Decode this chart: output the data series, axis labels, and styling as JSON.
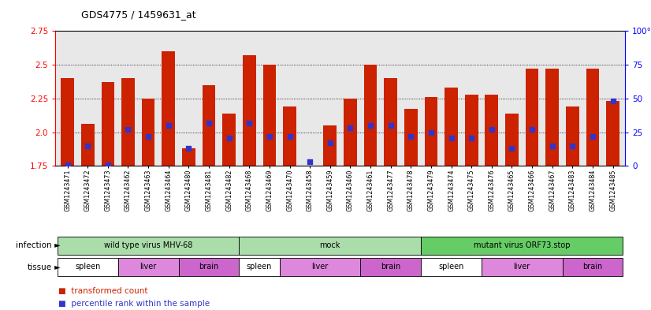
{
  "title": "GDS4775 / 1459631_at",
  "samples": [
    "GSM1243471",
    "GSM1243472",
    "GSM1243473",
    "GSM1243462",
    "GSM1243463",
    "GSM1243464",
    "GSM1243480",
    "GSM1243481",
    "GSM1243482",
    "GSM1243468",
    "GSM1243469",
    "GSM1243470",
    "GSM1243458",
    "GSM1243459",
    "GSM1243460",
    "GSM1243461",
    "GSM1243477",
    "GSM1243478",
    "GSM1243479",
    "GSM1243474",
    "GSM1243475",
    "GSM1243476",
    "GSM1243465",
    "GSM1243466",
    "GSM1243467",
    "GSM1243483",
    "GSM1243484",
    "GSM1243485"
  ],
  "red_values": [
    2.4,
    2.06,
    2.37,
    2.4,
    2.25,
    2.6,
    1.88,
    2.35,
    2.14,
    2.57,
    2.5,
    2.19,
    1.75,
    2.05,
    2.25,
    2.5,
    2.4,
    2.17,
    2.26,
    2.33,
    2.28,
    2.28,
    2.14,
    2.47,
    2.47,
    2.19,
    2.47,
    2.23
  ],
  "blue_values": [
    1.755,
    1.9,
    1.755,
    2.02,
    1.97,
    2.05,
    1.88,
    2.07,
    1.955,
    2.07,
    1.97,
    1.97,
    1.78,
    1.92,
    2.03,
    2.05,
    2.05,
    1.97,
    2.0,
    1.955,
    1.955,
    2.02,
    1.88,
    2.02,
    1.9,
    1.9,
    1.97,
    2.23
  ],
  "ylim": [
    1.75,
    2.75
  ],
  "yticks_left": [
    1.75,
    2.0,
    2.25,
    2.5,
    2.75
  ],
  "yticks_right": [
    0,
    25,
    50,
    75,
    100
  ],
  "bar_color": "#cc2200",
  "blue_color": "#3333cc",
  "plot_bg": "#e8e8e8",
  "infection_groups": [
    {
      "label": "wild type virus MHV-68",
      "start": 0,
      "end": 9,
      "color": "#aaddaa"
    },
    {
      "label": "mock",
      "start": 9,
      "end": 18,
      "color": "#aaddaa"
    },
    {
      "label": "mutant virus ORF73.stop",
      "start": 18,
      "end": 28,
      "color": "#66cc66"
    }
  ],
  "tissue_groups": [
    {
      "label": "spleen",
      "start": 0,
      "end": 3,
      "color": "#ffffff"
    },
    {
      "label": "liver",
      "start": 3,
      "end": 6,
      "color": "#dd88dd"
    },
    {
      "label": "brain",
      "start": 6,
      "end": 9,
      "color": "#cc66cc"
    },
    {
      "label": "spleen",
      "start": 9,
      "end": 11,
      "color": "#ffffff"
    },
    {
      "label": "liver",
      "start": 11,
      "end": 15,
      "color": "#dd88dd"
    },
    {
      "label": "brain",
      "start": 15,
      "end": 18,
      "color": "#cc66cc"
    },
    {
      "label": "spleen",
      "start": 18,
      "end": 21,
      "color": "#ffffff"
    },
    {
      "label": "liver",
      "start": 21,
      "end": 25,
      "color": "#dd88dd"
    },
    {
      "label": "brain",
      "start": 25,
      "end": 28,
      "color": "#cc66cc"
    }
  ]
}
